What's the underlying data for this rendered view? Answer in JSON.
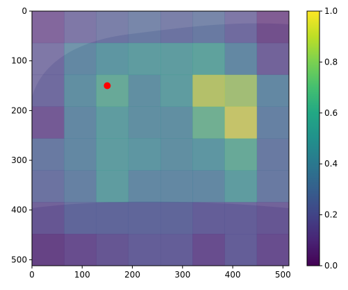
{
  "chart_data": {
    "type": "heatmap",
    "title": "",
    "xlabel": "",
    "ylabel": "",
    "description": "Attention heatmap (viridis, alpha-blended) over a histology tissue image; 8x8 grid of patch scores.",
    "xlim": [
      0,
      512
    ],
    "ylim": [
      512,
      0
    ],
    "x_ticks": [
      0,
      100,
      200,
      300,
      400,
      500
    ],
    "y_ticks": [
      0,
      100,
      200,
      300,
      400,
      500
    ],
    "grid_size": [
      8,
      8
    ],
    "patch_size": 64,
    "values": [
      [
        0.1,
        0.2,
        0.25,
        0.3,
        0.25,
        0.3,
        0.2,
        0.05
      ],
      [
        0.2,
        0.4,
        0.5,
        0.55,
        0.55,
        0.6,
        0.4,
        0.15
      ],
      [
        0.2,
        0.45,
        0.65,
        0.45,
        0.55,
        0.9,
        0.85,
        0.4
      ],
      [
        0.1,
        0.4,
        0.55,
        0.45,
        0.45,
        0.7,
        0.95,
        0.35
      ],
      [
        0.3,
        0.4,
        0.55,
        0.5,
        0.45,
        0.5,
        0.65,
        0.3
      ],
      [
        0.25,
        0.35,
        0.55,
        0.4,
        0.4,
        0.4,
        0.55,
        0.3
      ],
      [
        0.15,
        0.25,
        0.25,
        0.25,
        0.25,
        0.2,
        0.2,
        0.15
      ],
      [
        0.05,
        0.1,
        0.15,
        0.2,
        0.2,
        0.1,
        0.2,
        0.1
      ]
    ],
    "point": {
      "x": 150,
      "y": 150,
      "color": "#ff0000"
    },
    "colormap": "viridis",
    "colorbar": {
      "range": [
        0.0,
        1.0
      ],
      "ticks": [
        "0.0",
        "0.2",
        "0.4",
        "0.6",
        "0.8",
        "1.0"
      ]
    },
    "x_tick_labels": [
      "0",
      "100",
      "200",
      "300",
      "400",
      "500"
    ],
    "y_tick_labels": [
      "0",
      "100",
      "200",
      "300",
      "400",
      "500"
    ]
  }
}
